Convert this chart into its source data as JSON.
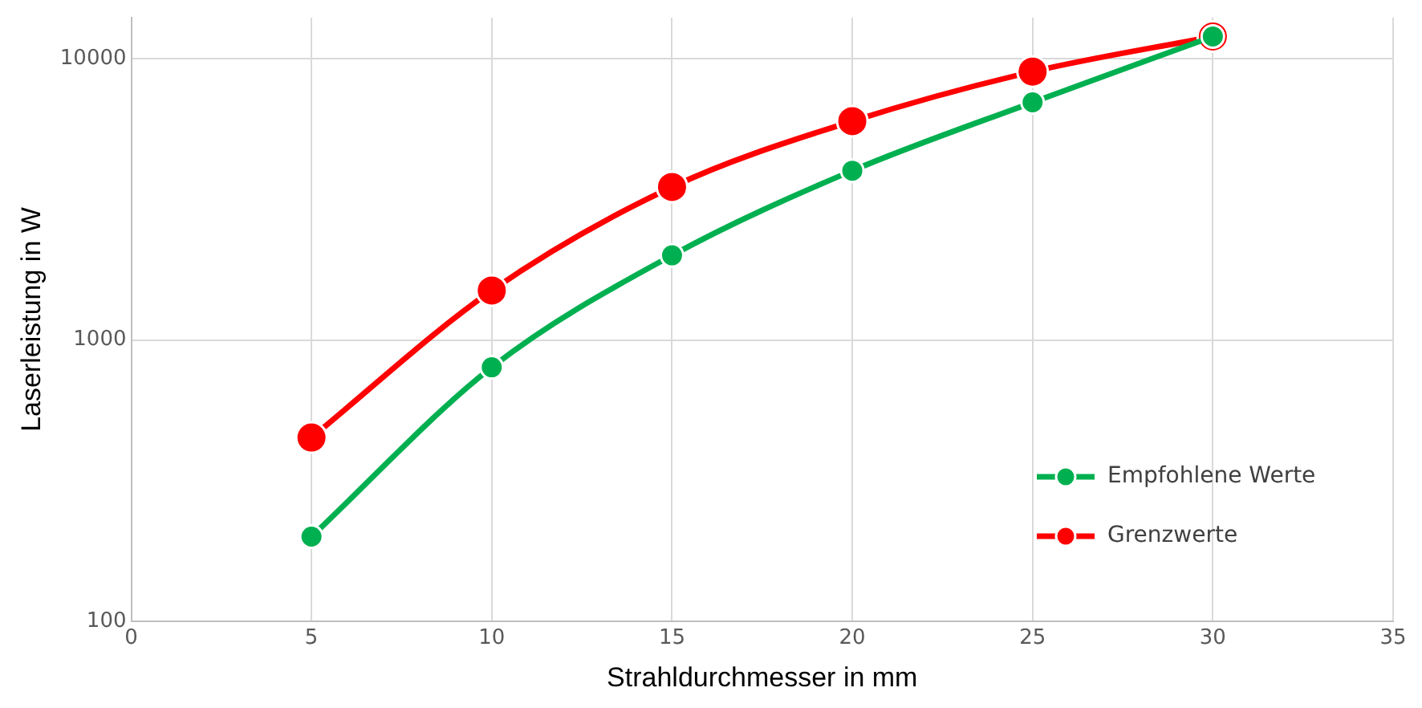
{
  "chart_data": {
    "type": "line",
    "xlabel": "Strahldurchmesser in mm",
    "ylabel": "Laserleistung in W",
    "x": [
      5,
      10,
      15,
      20,
      25,
      30
    ],
    "series": [
      {
        "name": "Empfohlene Werte",
        "color": "#00b050",
        "values": [
          200,
          800,
          2000,
          4000,
          7000,
          12000
        ]
      },
      {
        "name": "Grenzwerte",
        "color": "#ff0000",
        "values": [
          450,
          1500,
          3500,
          6000,
          9000,
          12000
        ]
      }
    ],
    "xlim": [
      0,
      35
    ],
    "xticks": [
      0,
      5,
      10,
      15,
      20,
      25,
      30,
      35
    ],
    "ylim": [
      100,
      14000
    ],
    "yticks": [
      100,
      1000,
      10000
    ],
    "log": "y",
    "grid": true,
    "legend": "bottom right",
    "marker": "circle",
    "line_style": "solid"
  }
}
